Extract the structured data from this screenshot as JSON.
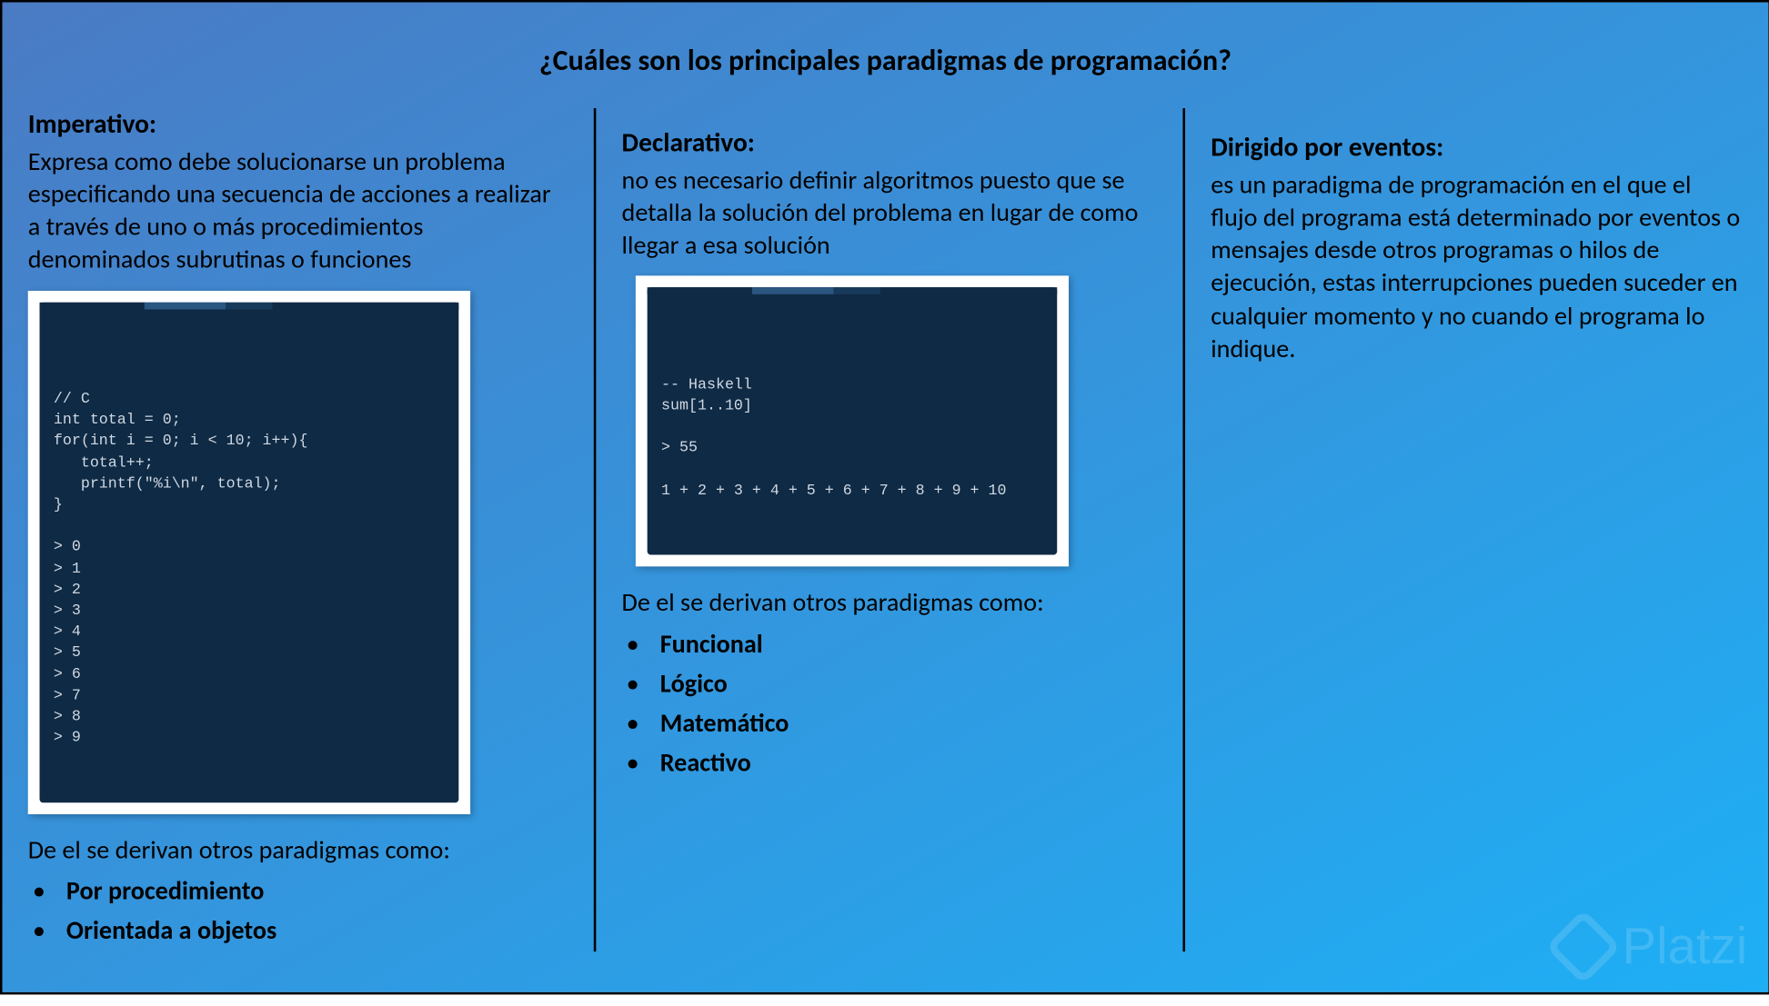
{
  "slide": {
    "title": "¿Cuáles son los principales paradigmas de programación?",
    "background_gradient": [
      "#4a7bc4",
      "#1eaff5"
    ],
    "border_color": "#000000",
    "divider_color": "#000000",
    "text_color": "#000000",
    "title_fontsize": 25,
    "body_fontsize": 22
  },
  "col1": {
    "heading": "Imperativo:",
    "desc": "Expresa como debe solucionarse un problema especificando una secuencia de acciones a realizar a través de uno o más procedimientos denominados subrutinas o funciones",
    "code": {
      "language": "C",
      "frame_bg": "#ffffff",
      "box_bg": "#0f2a44",
      "text_color": "#cfd8e3",
      "font_family": "Courier New",
      "font_size": 13,
      "content": "// C\nint total = 0;\nfor(int i = 0; i < 10; i++){\n   total++;\n   printf(\"%i\\n\", total);\n}\n\n> 0\n> 1\n> 2\n> 3\n> 4\n> 5\n> 6\n> 7\n> 8\n> 9"
    },
    "derive_label": "De el se derivan otros paradigmas como:",
    "paradigms": [
      "Por procedimiento",
      "Orientada a objetos"
    ]
  },
  "col2": {
    "heading": "Declarativo:",
    "desc": "no es necesario definir algoritmos puesto que se detalla la solución del problema en lugar de como llegar a esa solución",
    "code": {
      "language": "Haskell",
      "frame_bg": "#ffffff",
      "box_bg": "#0f2a44",
      "text_color": "#cfd8e3",
      "font_family": "Courier New",
      "font_size": 13,
      "content": "-- Haskell\nsum[1..10]\n\n> 55\n\n1 + 2 + 3 + 4 + 5 + 6 + 7 + 8 + 9 + 10"
    },
    "derive_label": "De el se derivan otros paradigmas como:",
    "paradigms": [
      "Funcional",
      "Lógico",
      "Matemático",
      "Reactivo"
    ]
  },
  "col3": {
    "heading": "Dirigido por eventos:",
    "desc": "es un paradigma de programación en el que el flujo del programa está determinado por eventos o mensajes desde otros programas o hilos de ejecución, estas interrupciones pueden suceder en cualquier momento y no cuando el programa lo indique."
  },
  "watermark": {
    "text": "Platzi",
    "color": "rgba(255,255,255,0.15)",
    "font_size": 44
  }
}
